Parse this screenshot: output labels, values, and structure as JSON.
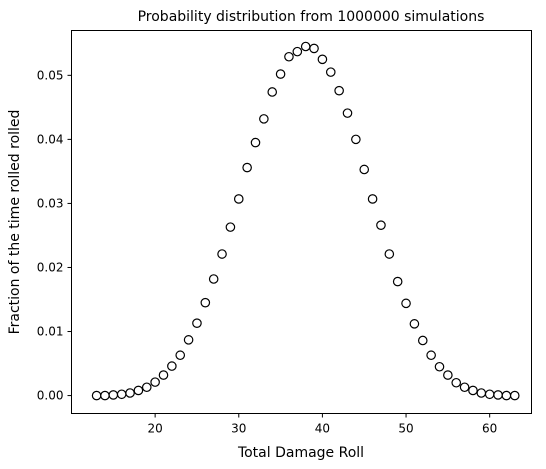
{
  "chart_data": {
    "type": "scatter",
    "title": "Probability distribution from 1000000 simulations",
    "xlabel": "Total Damage Roll",
    "ylabel": "Fraction of the time rolled rolled",
    "xlim": [
      10,
      65
    ],
    "ylim": [
      -0.0028,
      0.057
    ],
    "x_ticks": [
      20,
      30,
      40,
      50,
      60
    ],
    "x_tick_labels": [
      "20",
      "30",
      "40",
      "50",
      "60"
    ],
    "y_ticks": [
      0.0,
      0.01,
      0.02,
      0.03,
      0.04,
      0.05
    ],
    "y_tick_labels": [
      "0.00",
      "0.01",
      "0.02",
      "0.03",
      "0.04",
      "0.05"
    ],
    "grid": false,
    "marker": {
      "shape": "circle",
      "fill": "#ffffff",
      "edge": "#000000"
    },
    "x": [
      13,
      14,
      15,
      16,
      17,
      18,
      19,
      20,
      21,
      22,
      23,
      24,
      25,
      26,
      27,
      28,
      29,
      30,
      31,
      32,
      33,
      34,
      35,
      36,
      37,
      38,
      39,
      40,
      41,
      42,
      43,
      44,
      45,
      46,
      47,
      48,
      49,
      50,
      51,
      52,
      53,
      54,
      55,
      56,
      57,
      58,
      59,
      60,
      61,
      62,
      63
    ],
    "y": [
      0.0,
      0.0,
      0.0001,
      0.0002,
      0.0004,
      0.0008,
      0.0013,
      0.0021,
      0.0032,
      0.0046,
      0.0063,
      0.0087,
      0.0113,
      0.0145,
      0.0182,
      0.0221,
      0.0263,
      0.0307,
      0.0356,
      0.0395,
      0.0432,
      0.0474,
      0.0502,
      0.0529,
      0.0537,
      0.0545,
      0.0542,
      0.0525,
      0.0505,
      0.0476,
      0.0441,
      0.04,
      0.0353,
      0.0307,
      0.0266,
      0.0221,
      0.0178,
      0.0144,
      0.0112,
      0.0086,
      0.0063,
      0.0045,
      0.0032,
      0.002,
      0.0013,
      0.0008,
      0.0004,
      0.0002,
      0.0001,
      0.0,
      0.0
    ]
  }
}
